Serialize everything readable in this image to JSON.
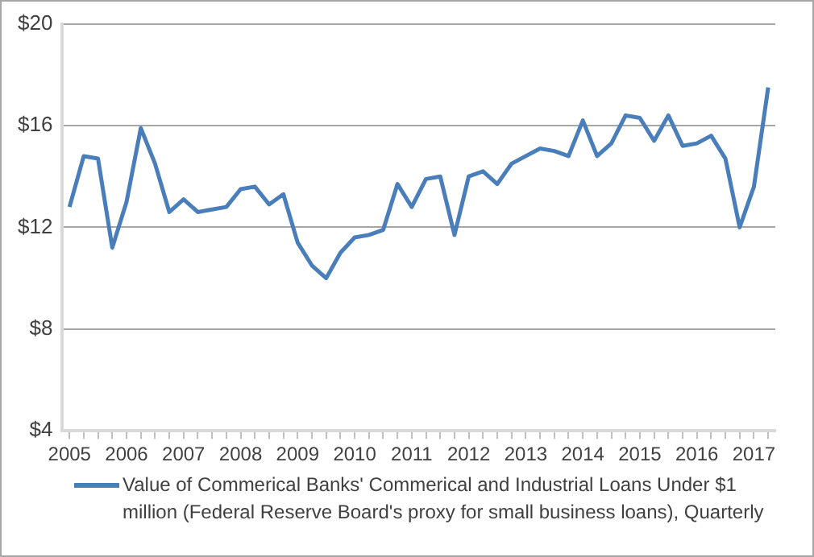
{
  "chart_data": {
    "type": "line",
    "categories": [
      "2005",
      null,
      null,
      null,
      "2006",
      null,
      null,
      null,
      "2007",
      null,
      null,
      null,
      "2008",
      null,
      null,
      null,
      "2009",
      null,
      null,
      null,
      "2010",
      null,
      null,
      null,
      "2011",
      null,
      null,
      null,
      "2012",
      null,
      null,
      null,
      "2013",
      null,
      null,
      null,
      "2014",
      null,
      null,
      null,
      "2015",
      null,
      null,
      null,
      "2016",
      null,
      null,
      null,
      "2017",
      null
    ],
    "series": [
      {
        "name": "Value of Commerical Banks' Commerical and Industrial Loans Under $1 million (Federal Reserve Board's proxy for small business loans), Quarterly",
        "color": "#4a7ebb",
        "values": [
          12.8,
          14.8,
          14.7,
          11.2,
          13.0,
          15.9,
          14.5,
          12.6,
          13.1,
          12.6,
          12.7,
          12.8,
          13.5,
          13.6,
          12.9,
          13.3,
          11.4,
          10.5,
          10.0,
          11.0,
          11.6,
          11.7,
          11.9,
          13.7,
          12.8,
          13.9,
          14.0,
          11.7,
          14.0,
          14.2,
          13.7,
          14.5,
          14.8,
          15.1,
          15.0,
          14.8,
          16.2,
          14.8,
          15.3,
          16.4,
          16.3,
          15.4,
          16.4,
          15.2,
          15.3,
          15.6,
          14.7,
          12.0,
          13.6,
          17.5
        ]
      }
    ],
    "ylim": [
      4,
      20
    ],
    "yticks": [
      {
        "value": 4,
        "label": "$4"
      },
      {
        "value": 8,
        "label": "$8"
      },
      {
        "value": 12,
        "label": "$12"
      },
      {
        "value": 16,
        "label": "$16"
      },
      {
        "value": 20,
        "label": "$20"
      }
    ],
    "grid": "y",
    "legend": "bottom",
    "marker": "none",
    "line_style": "solid"
  }
}
